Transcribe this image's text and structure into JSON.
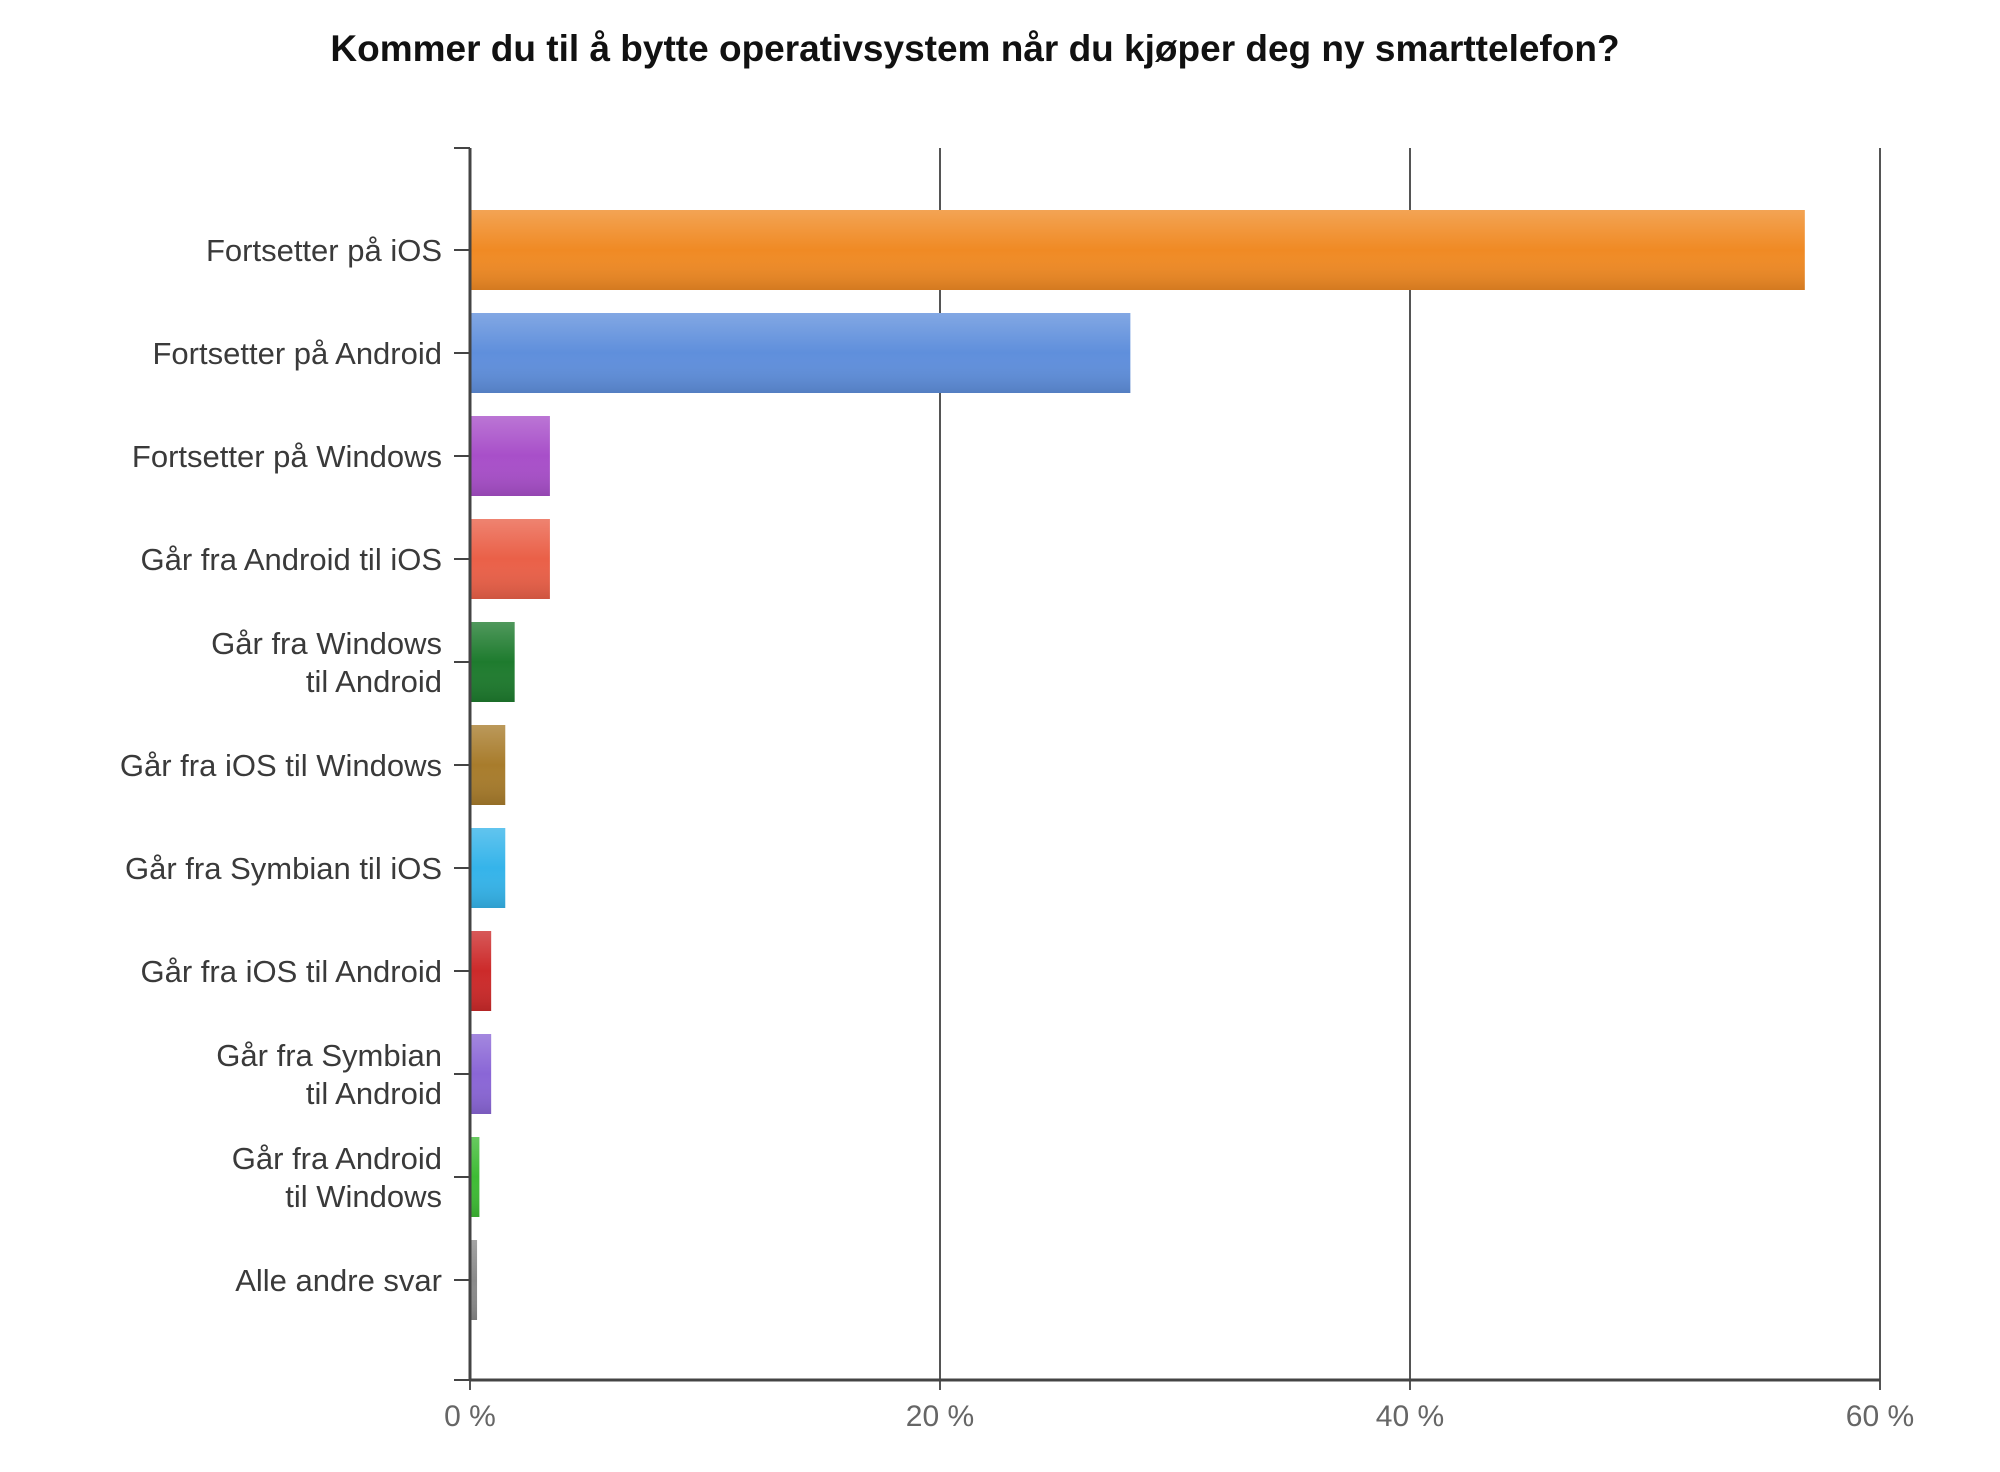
{
  "chart_data": {
    "type": "bar",
    "orientation": "horizontal",
    "title": "Kommer du til å bytte operativsystem når du kjøper deg ny smarttelefon?",
    "xlabel": "",
    "ylabel": "",
    "xlim": [
      0,
      60
    ],
    "x_ticks": [
      {
        "value": 0,
        "label": "0 %"
      },
      {
        "value": 20,
        "label": "20 %"
      },
      {
        "value": 40,
        "label": "40 %"
      },
      {
        "value": 60,
        "label": "60 %"
      }
    ],
    "grid": "vertical",
    "legend": "none",
    "categories": [
      [
        "Fortsetter på iOS"
      ],
      [
        "Fortsetter på Android"
      ],
      [
        "Fortsetter på Windows"
      ],
      [
        "Går fra Android til iOS"
      ],
      [
        "Går fra Windows",
        "til Android"
      ],
      [
        "Går fra iOS til Windows"
      ],
      [
        "Går fra Symbian til iOS"
      ],
      [
        "Går fra iOS til Android"
      ],
      [
        "Går fra Symbian",
        "til Android"
      ],
      [
        "Går fra Android",
        "til Windows"
      ],
      [
        "Alle andre svar"
      ]
    ],
    "values": [
      56.8,
      28.1,
      3.4,
      3.4,
      1.9,
      1.5,
      1.5,
      0.9,
      0.9,
      0.4,
      0.3
    ],
    "colors": [
      "#f08a24",
      "#5f8fdc",
      "#a84fc9",
      "#ea6048",
      "#1e7b2e",
      "#a87c2c",
      "#35b4ea",
      "#cc2a2a",
      "#8a66d6",
      "#3ebb34",
      "#8a8a8a"
    ]
  }
}
